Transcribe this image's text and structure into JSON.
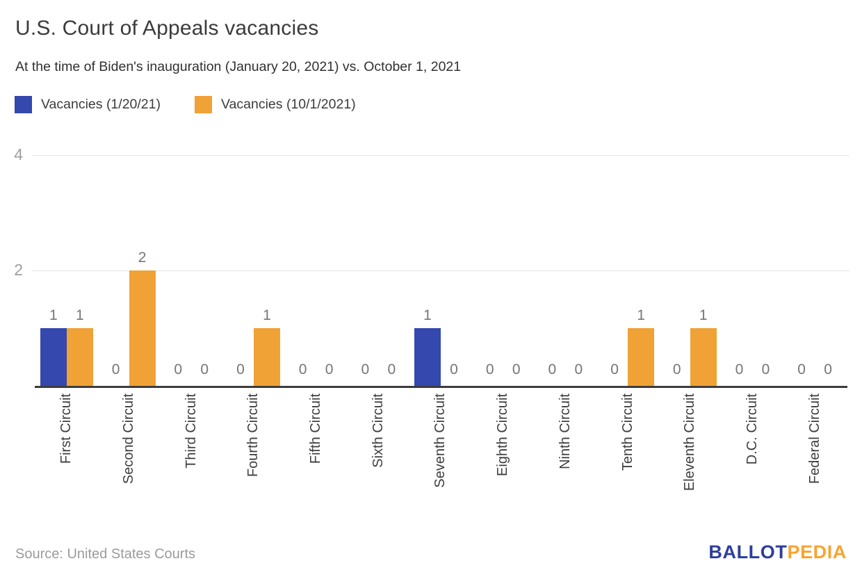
{
  "header": {
    "title": "U.S. Court of Appeals vacancies",
    "subtitle": "At the time of Biden's inauguration (January 20, 2021) vs. October 1, 2021"
  },
  "chart_data": {
    "type": "bar",
    "title": "U.S. Court of Appeals vacancies",
    "subtitle": "At the time of Biden's inauguration (January 20, 2021) vs. October 1, 2021",
    "categories": [
      "First Circuit",
      "Second Circuit",
      "Third Circuit",
      "Fourth Circuit",
      "Fifth Circuit",
      "Sixth Circuit",
      "Seventh Circuit",
      "Eighth Circuit",
      "Ninth Circuit",
      "Tenth Circuit",
      "Eleventh Circuit",
      "D.C. Circuit",
      "Federal Circuit"
    ],
    "series": [
      {
        "name": "Vacancies (1/20/21)",
        "color": "#3448ad",
        "values": [
          1,
          0,
          0,
          0,
          0,
          0,
          1,
          0,
          0,
          0,
          0,
          0,
          0
        ]
      },
      {
        "name": "Vacancies (10/1/2021)",
        "color": "#f0a236",
        "values": [
          1,
          2,
          0,
          1,
          0,
          0,
          0,
          0,
          0,
          1,
          1,
          0,
          0
        ]
      }
    ],
    "xlabel": "",
    "ylabel": "",
    "ylim": [
      0,
      4
    ],
    "yticks": [
      2,
      4
    ],
    "grid": "horizontal",
    "legend_position": "top-left",
    "data_labels": true,
    "colors": {
      "grid": "#e6e6e6",
      "axis_line": "#3c3c3c",
      "tick_label": "#9e9e9e",
      "value_label": "#757575",
      "category_label": "#3d3d3d"
    }
  },
  "footer": {
    "source": "Source: United States Courts",
    "logo": {
      "part1": "BALLOT",
      "part2": "PEDIA",
      "color1": "#2d3e9e",
      "color2": "#f9a32f"
    }
  }
}
